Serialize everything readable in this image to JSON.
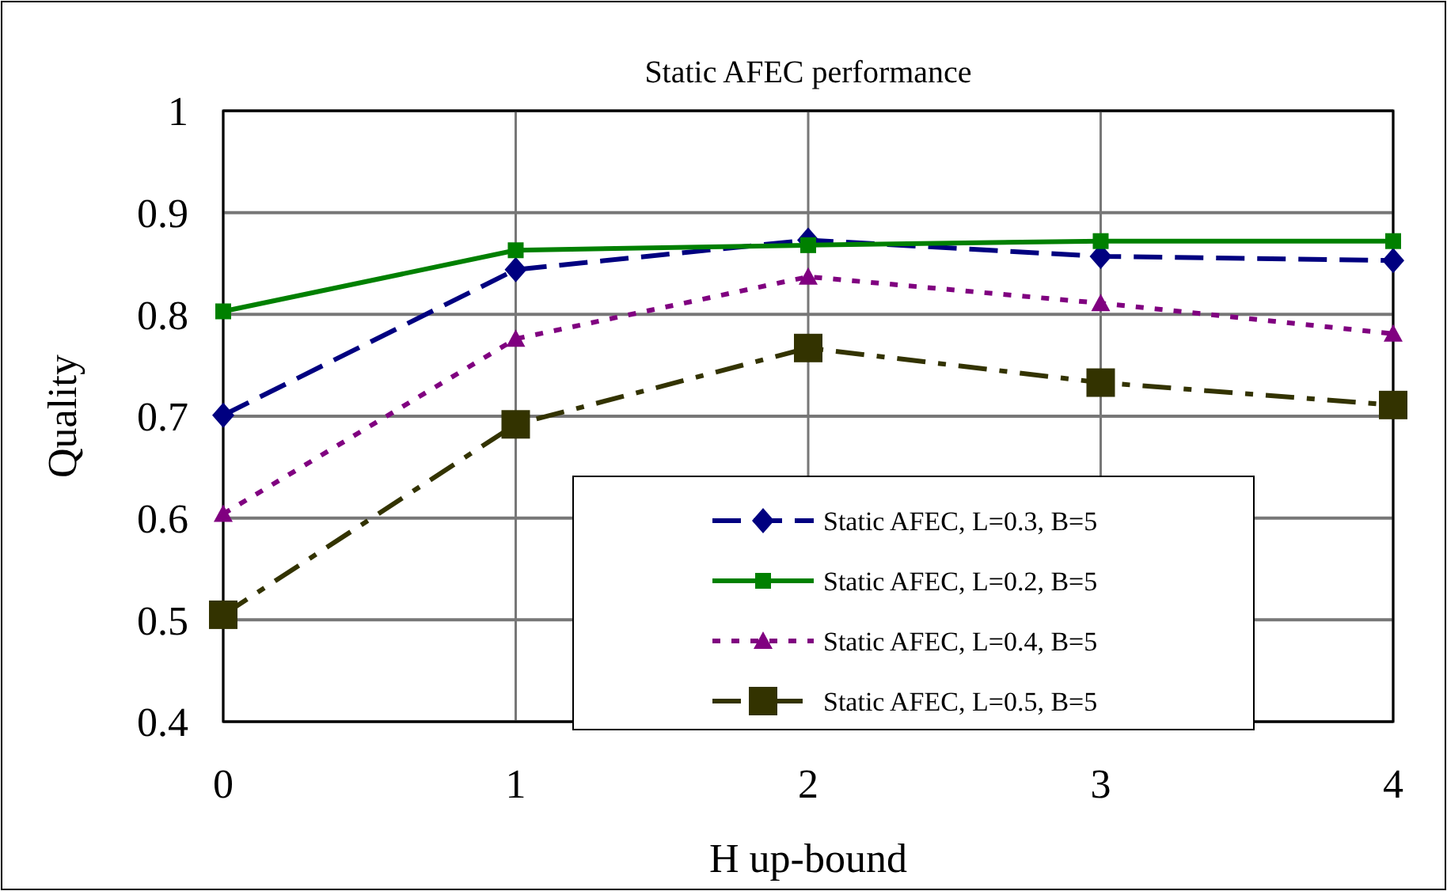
{
  "chart_data": {
    "type": "line",
    "title": "Static AFEC performance",
    "xlabel": "H up-bound",
    "ylabel": "Quality",
    "x": [
      0,
      1,
      2,
      3,
      4
    ],
    "xlim": [
      0,
      4
    ],
    "xticks": [
      0,
      1,
      2,
      3,
      4
    ],
    "ylim": [
      0.4,
      1
    ],
    "yticks": [
      0.4,
      0.5,
      0.6,
      0.7,
      0.8,
      0.9,
      1
    ],
    "grid": true,
    "legend": "bottom right",
    "series": [
      {
        "name": "Static AFEC, L=0.3, B=5",
        "color": "#000080",
        "values": [
          0.701,
          0.844,
          0.873,
          0.857,
          0.853
        ],
        "marker": "diamond",
        "line_style": "dashed"
      },
      {
        "name": "Static AFEC, L=0.2, B=5",
        "color": "#008000",
        "values": [
          0.803,
          0.863,
          0.868,
          0.872,
          0.872
        ],
        "marker": "square",
        "line_style": "solid"
      },
      {
        "name": "Static AFEC, L=0.4, B=5",
        "color": "#800080",
        "values": [
          0.604,
          0.776,
          0.837,
          0.811,
          0.781
        ],
        "marker": "triangle",
        "line_style": "dotted"
      },
      {
        "name": "Static AFEC, L=0.5, B=5",
        "color": "#333300",
        "values": [
          0.505,
          0.692,
          0.767,
          0.733,
          0.711
        ],
        "marker": "square",
        "line_style": "dashdot"
      }
    ]
  }
}
